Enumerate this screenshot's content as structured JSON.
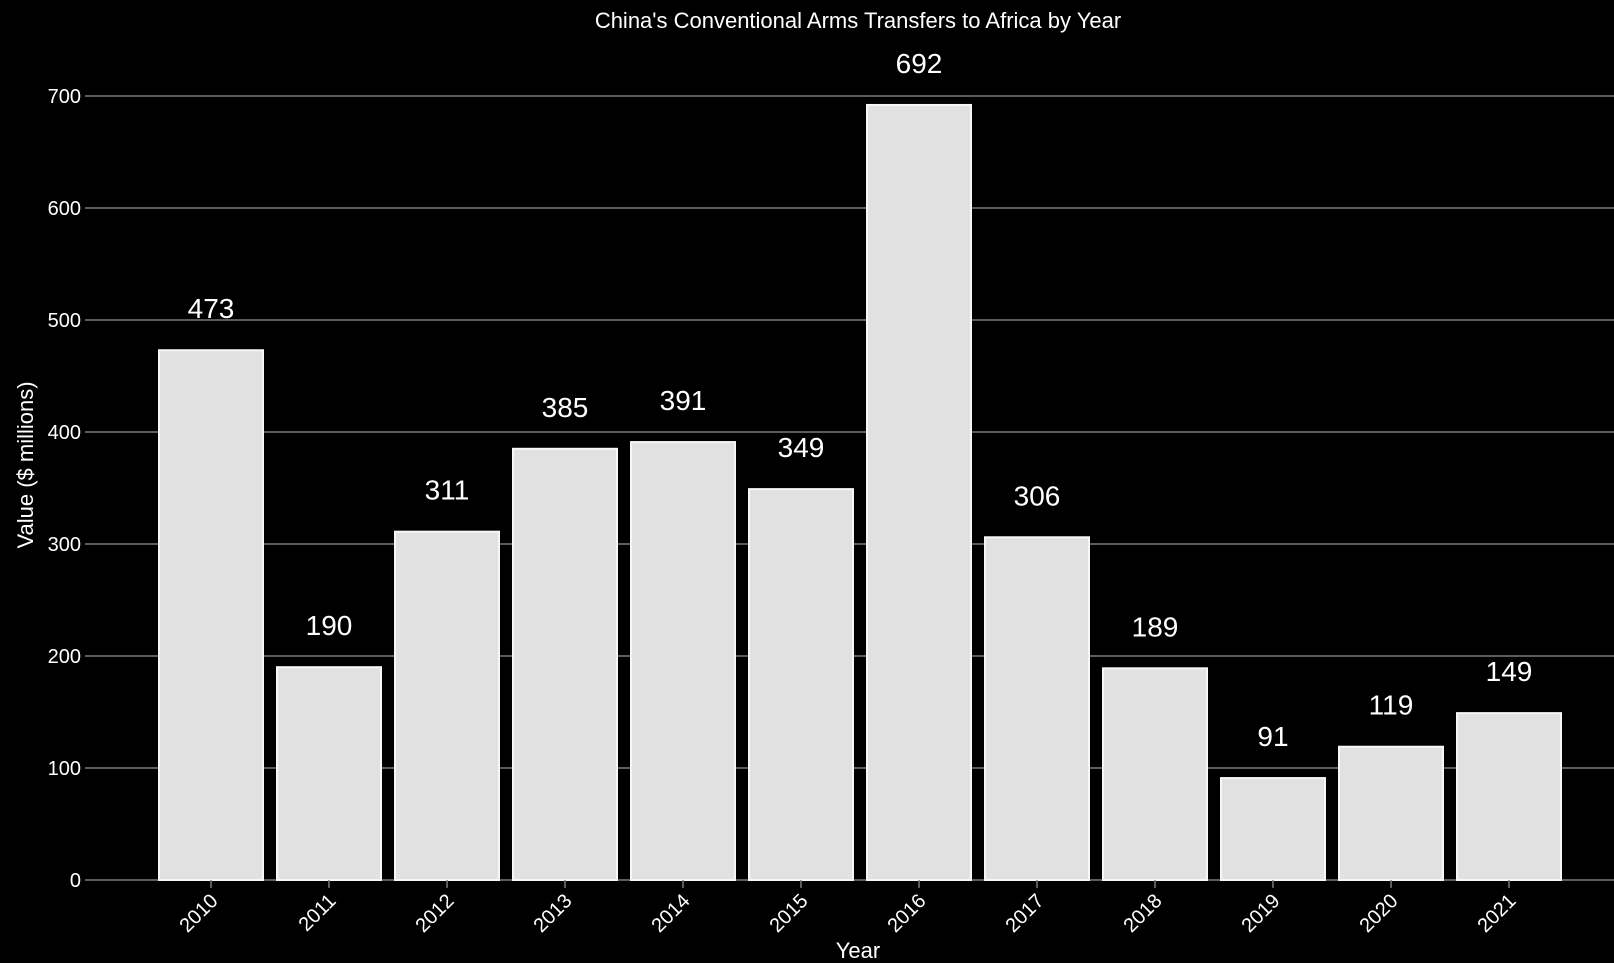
{
  "chart_data": {
    "type": "bar",
    "title": "China's Conventional Arms Transfers to Africa by Year",
    "xlabel": "Year",
    "ylabel": "Value ($ millions)",
    "categories": [
      "2010",
      "2011",
      "2012",
      "2013",
      "2014",
      "2015",
      "2016",
      "2017",
      "2018",
      "2019",
      "2020",
      "2021"
    ],
    "values": [
      473,
      190,
      311,
      385,
      391,
      349,
      692,
      306,
      189,
      91,
      119,
      149
    ],
    "data_labels": [
      "473",
      "190",
      "311",
      "385",
      "391",
      "349",
      "692",
      "306",
      "189",
      "91",
      "119",
      "149"
    ],
    "ylim": [
      0,
      700
    ],
    "yticks": [
      0,
      100,
      200,
      300,
      400,
      500,
      600,
      700
    ],
    "grid": "horizontal",
    "legend": "none",
    "colors": {
      "background": "#000000",
      "bar": "#e1e1e1",
      "bar_edge": "#f7f7f7",
      "grid": "#7a7a7a",
      "text": "#ffffff"
    }
  }
}
